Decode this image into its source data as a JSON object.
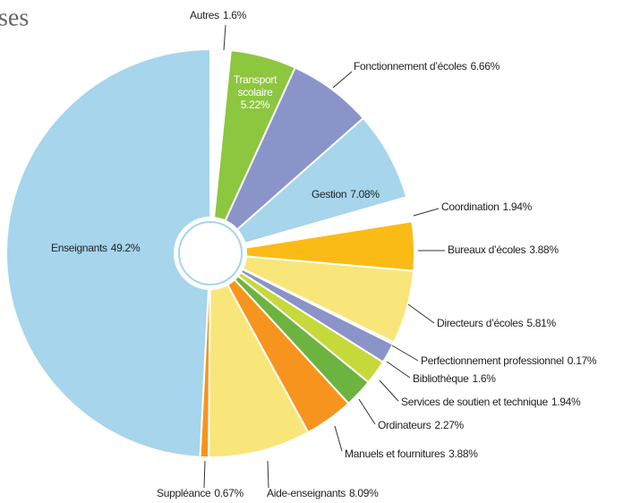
{
  "chart_data": {
    "type": "pie",
    "title": "ses",
    "categories": [
      "Autres",
      "Transport scolaire",
      "Fonctionnement d’écoles",
      "Gestion",
      "Coordination",
      "Bureaux d’écoles",
      "Directeurs d’écoles",
      "Perfectionnement professionnel",
      "Bibliothèque",
      "Services de soutien et technique",
      "Ordinateurs",
      "Manuels et fournitures",
      "Aide-enseignants",
      "Suppléance",
      "Enseignants"
    ],
    "values": [
      1.6,
      5.22,
      6.66,
      7.08,
      1.94,
      3.88,
      5.81,
      0.17,
      1.6,
      1.94,
      2.27,
      3.88,
      8.09,
      0.67,
      49.2
    ],
    "value_labels": [
      "1.6%",
      "5.22%",
      "6.66%",
      "7.08%",
      "1.94%",
      "3.88%",
      "5.81%",
      "0.17%",
      "1.6%",
      "1.94%",
      "2.27%",
      "3.88%",
      "8.09%",
      "0.67%",
      "49.2%"
    ],
    "colors": [
      "#ffffff",
      "#8dc63f",
      "#8a94c9",
      "#a6d5ec",
      "#ffffff",
      "#fbbb16",
      "#f8e67a",
      "#a6d5ec",
      "#8a94c9",
      "#c6d93a",
      "#6db33f",
      "#f7941d",
      "#f8e67a",
      "#f7941d",
      "#a6d5ec"
    ]
  }
}
